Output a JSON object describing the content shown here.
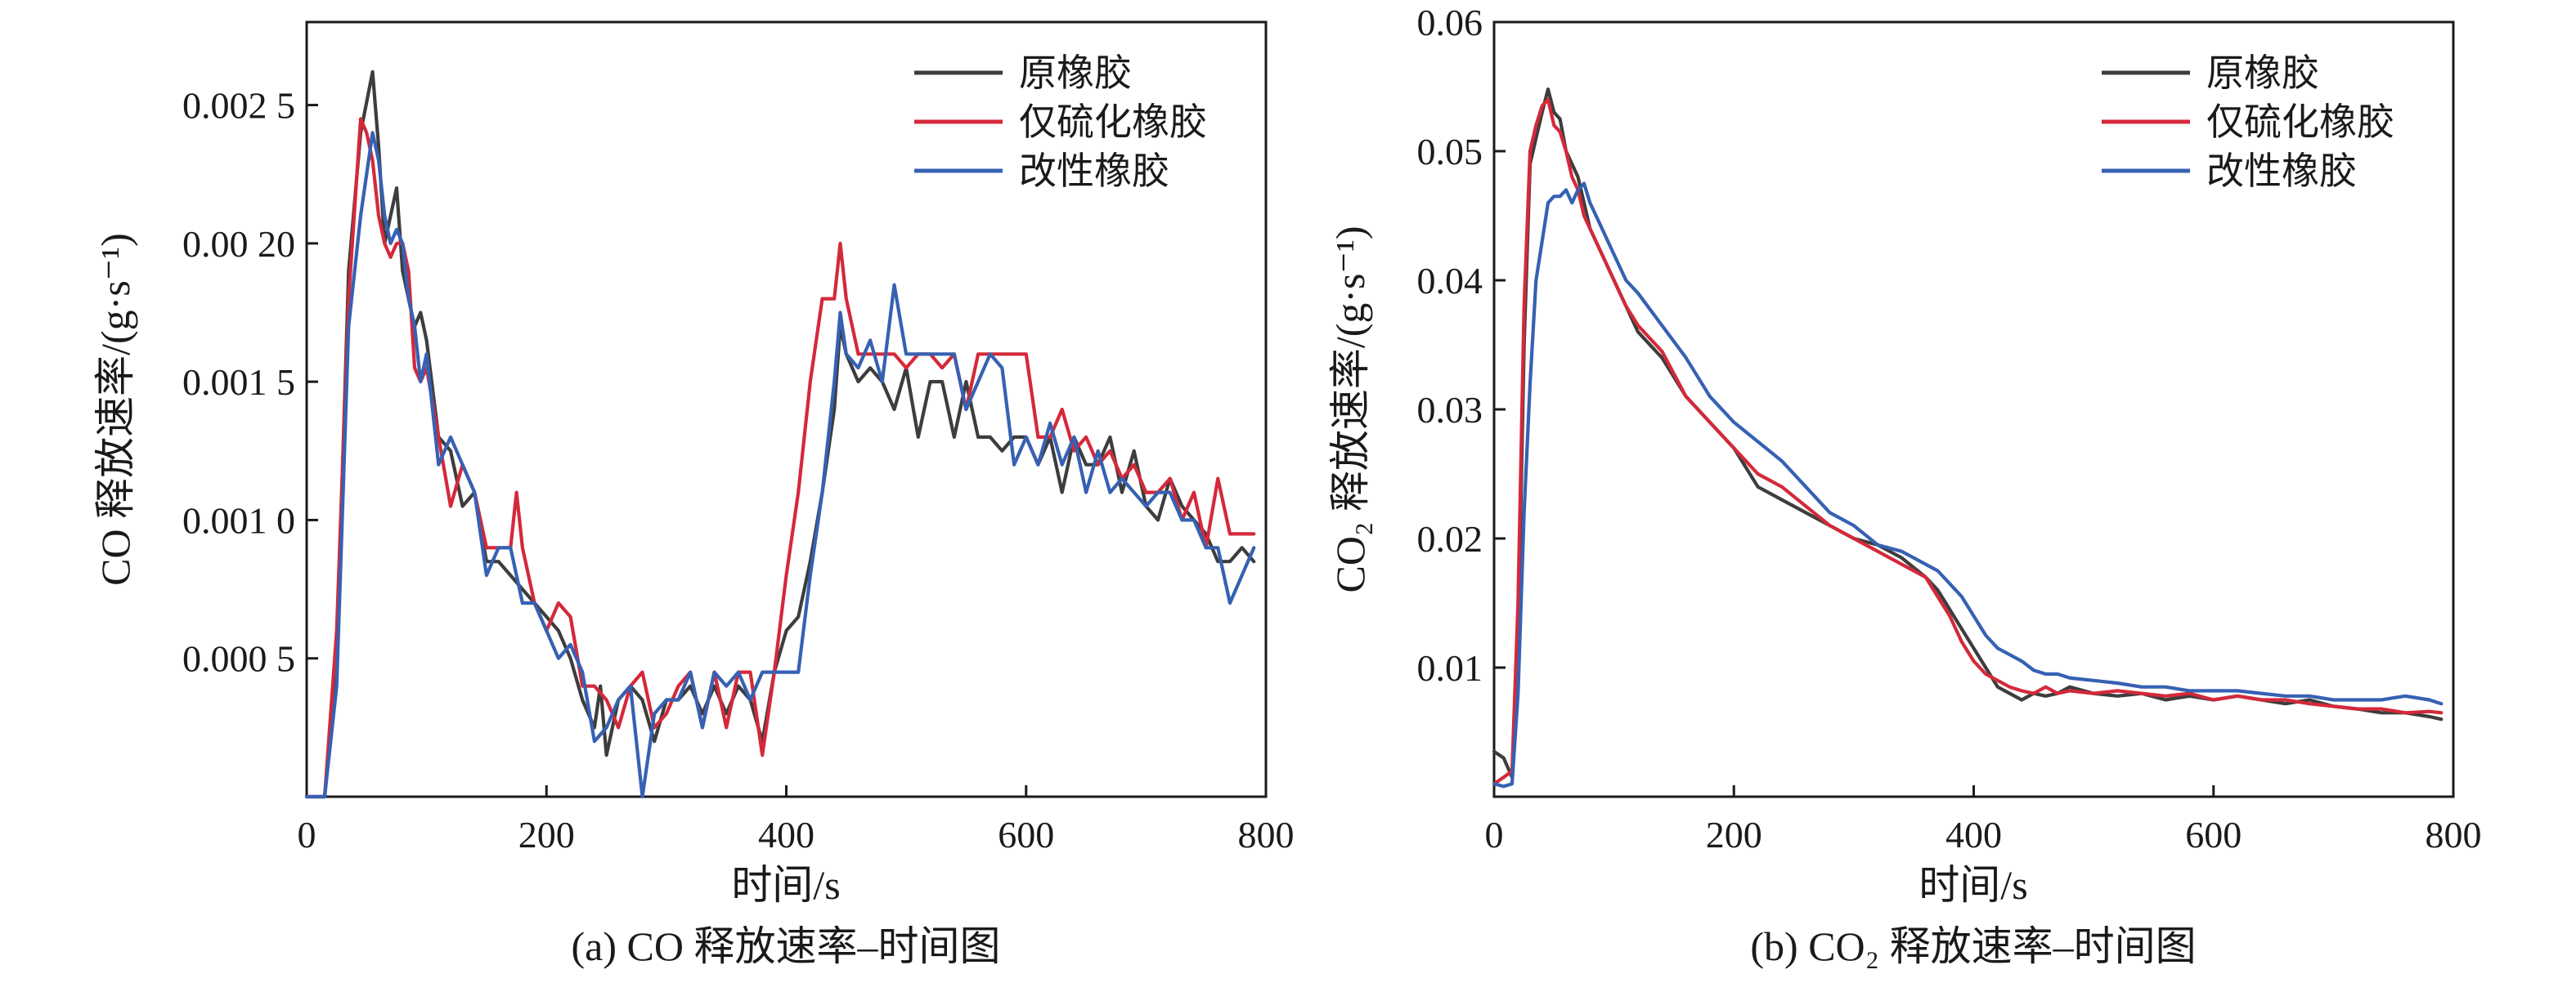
{
  "chart_data": [
    {
      "type": "line",
      "caption": "(a) CO 释放速率–时间图",
      "xlabel": "时间/s",
      "ylabel": "CO 释放速率/(g·s⁻¹)",
      "xlim": [
        0,
        800
      ],
      "ylim": [
        0.0,
        0.0028
      ],
      "xticks": [
        0,
        200,
        400,
        600,
        800
      ],
      "xtick_labels": [
        "0",
        "200",
        "400",
        "600",
        "800"
      ],
      "yticks": [
        0.0005,
        0.001,
        0.0015,
        0.002,
        0.0025
      ],
      "ytick_labels": [
        "0.000 5",
        "0.001 0",
        "0.001 5",
        "0.00 20",
        "0.002 5"
      ],
      "legend_position": "top-right",
      "grid": false,
      "series": [
        {
          "name": "原橡胶",
          "color": "#3d3d3d",
          "x": [
            0,
            15,
            25,
            35,
            45,
            55,
            60,
            65,
            70,
            75,
            80,
            85,
            90,
            95,
            100,
            110,
            120,
            130,
            140,
            150,
            160,
            170,
            180,
            190,
            200,
            210,
            220,
            230,
            240,
            245,
            250,
            260,
            270,
            280,
            290,
            300,
            310,
            320,
            330,
            340,
            350,
            360,
            370,
            380,
            390,
            400,
            410,
            420,
            430,
            440,
            445,
            450,
            460,
            470,
            480,
            490,
            500,
            510,
            520,
            530,
            540,
            550,
            560,
            570,
            580,
            590,
            600,
            610,
            620,
            630,
            640,
            650,
            660,
            670,
            680,
            690,
            700,
            710,
            720,
            730,
            740,
            750,
            760,
            770,
            780,
            790
          ],
          "y": [
            0.0,
            0.0,
            0.0005,
            0.0019,
            0.0024,
            0.00262,
            0.00235,
            0.002,
            0.0021,
            0.0022,
            0.0019,
            0.0018,
            0.0017,
            0.00175,
            0.00165,
            0.0013,
            0.00125,
            0.00105,
            0.0011,
            0.00085,
            0.00085,
            0.0008,
            0.00075,
            0.0007,
            0.00065,
            0.0006,
            0.0005,
            0.00035,
            0.00025,
            0.0004,
            0.00015,
            0.00035,
            0.0004,
            0.00035,
            0.0002,
            0.00035,
            0.00035,
            0.0004,
            0.0003,
            0.0004,
            0.0003,
            0.0004,
            0.00035,
            0.0002,
            0.00045,
            0.0006,
            0.00065,
            0.00085,
            0.0011,
            0.0014,
            0.0017,
            0.0016,
            0.0015,
            0.00155,
            0.0015,
            0.0014,
            0.00155,
            0.0013,
            0.0015,
            0.0015,
            0.0013,
            0.0015,
            0.0013,
            0.0013,
            0.00125,
            0.0013,
            0.0013,
            0.0012,
            0.0013,
            0.0011,
            0.0013,
            0.0012,
            0.0012,
            0.0013,
            0.0011,
            0.00125,
            0.00105,
            0.001,
            0.00115,
            0.00105,
            0.001,
            0.00095,
            0.00085,
            0.00085,
            0.0009,
            0.00085
          ]
        },
        {
          "name": "仅硫化橡胶",
          "color": "#d4293a",
          "x": [
            0,
            15,
            25,
            35,
            45,
            50,
            55,
            60,
            65,
            70,
            75,
            80,
            85,
            90,
            95,
            100,
            110,
            120,
            130,
            140,
            150,
            160,
            170,
            175,
            180,
            190,
            200,
            210,
            220,
            230,
            240,
            250,
            260,
            270,
            280,
            290,
            300,
            310,
            320,
            330,
            340,
            350,
            360,
            370,
            380,
            390,
            400,
            410,
            420,
            430,
            440,
            445,
            450,
            460,
            470,
            480,
            490,
            500,
            510,
            520,
            530,
            540,
            550,
            560,
            570,
            580,
            590,
            600,
            610,
            620,
            630,
            640,
            650,
            660,
            670,
            680,
            690,
            700,
            710,
            720,
            730,
            740,
            750,
            760,
            770,
            780,
            790
          ],
          "y": [
            0.0,
            0.0,
            0.0006,
            0.0018,
            0.00245,
            0.0024,
            0.0023,
            0.0021,
            0.002,
            0.00195,
            0.002,
            0.002,
            0.0019,
            0.00155,
            0.0015,
            0.00155,
            0.0013,
            0.00105,
            0.0012,
            0.0011,
            0.0009,
            0.0009,
            0.0009,
            0.0011,
            0.0009,
            0.0007,
            0.0006,
            0.0007,
            0.00065,
            0.0004,
            0.0004,
            0.00035,
            0.00025,
            0.0004,
            0.00045,
            0.00025,
            0.0003,
            0.0004,
            0.00045,
            0.00025,
            0.00045,
            0.00025,
            0.00045,
            0.00045,
            0.00015,
            0.00045,
            0.0008,
            0.0011,
            0.0015,
            0.0018,
            0.0018,
            0.002,
            0.0018,
            0.0016,
            0.0016,
            0.0016,
            0.0016,
            0.00155,
            0.0016,
            0.0016,
            0.00155,
            0.0016,
            0.0014,
            0.0016,
            0.0016,
            0.0016,
            0.0016,
            0.0016,
            0.0013,
            0.0013,
            0.0014,
            0.00125,
            0.0013,
            0.0012,
            0.00125,
            0.00115,
            0.0012,
            0.0011,
            0.0011,
            0.00115,
            0.001,
            0.0011,
            0.0009,
            0.00115,
            0.00095,
            0.00095,
            0.00095
          ]
        },
        {
          "name": "改性橡胶",
          "color": "#3661b3",
          "x": [
            0,
            15,
            25,
            35,
            45,
            55,
            60,
            65,
            70,
            75,
            80,
            85,
            90,
            95,
            100,
            110,
            120,
            130,
            140,
            150,
            160,
            170,
            180,
            190,
            200,
            210,
            220,
            230,
            240,
            250,
            260,
            270,
            280,
            290,
            300,
            310,
            320,
            330,
            340,
            350,
            360,
            370,
            380,
            390,
            400,
            410,
            420,
            430,
            440,
            445,
            450,
            460,
            470,
            480,
            490,
            500,
            510,
            520,
            530,
            540,
            550,
            560,
            570,
            580,
            590,
            600,
            610,
            620,
            630,
            640,
            650,
            660,
            670,
            680,
            690,
            700,
            710,
            720,
            730,
            740,
            750,
            760,
            770,
            780,
            790
          ],
          "y": [
            0.0,
            0.0,
            0.0004,
            0.0017,
            0.0021,
            0.0024,
            0.0023,
            0.0021,
            0.002,
            0.00205,
            0.002,
            0.0018,
            0.0017,
            0.0015,
            0.0016,
            0.0012,
            0.0013,
            0.0012,
            0.0011,
            0.0008,
            0.0009,
            0.0009,
            0.0007,
            0.0007,
            0.0006,
            0.0005,
            0.00055,
            0.00045,
            0.0002,
            0.00025,
            0.00035,
            0.0004,
            0.0,
            0.0003,
            0.00035,
            0.00035,
            0.00045,
            0.00025,
            0.00045,
            0.0004,
            0.00045,
            0.00035,
            0.00045,
            0.00045,
            0.00045,
            0.00045,
            0.0008,
            0.0011,
            0.0015,
            0.00175,
            0.0016,
            0.00155,
            0.00165,
            0.0015,
            0.00185,
            0.0016,
            0.0016,
            0.0016,
            0.0016,
            0.0016,
            0.0014,
            0.0015,
            0.0016,
            0.00155,
            0.0012,
            0.0013,
            0.0012,
            0.00135,
            0.0012,
            0.0013,
            0.0011,
            0.00125,
            0.0011,
            0.00115,
            0.0011,
            0.00105,
            0.0011,
            0.0011,
            0.001,
            0.001,
            0.0009,
            0.0009,
            0.0007,
            0.0008,
            0.0009
          ]
        }
      ]
    },
    {
      "type": "line",
      "caption": "(b) CO₂ 释放速率–时间图",
      "xlabel": "时间/s",
      "ylabel": "CO₂ 释放速率/(g·s⁻¹)",
      "xlim": [
        0,
        800
      ],
      "ylim": [
        0.0,
        0.06
      ],
      "xticks": [
        0,
        200,
        400,
        600,
        800
      ],
      "xtick_labels": [
        "0",
        "200",
        "400",
        "600",
        "800"
      ],
      "yticks": [
        0.01,
        0.02,
        0.03,
        0.04,
        0.05,
        0.06
      ],
      "ytick_labels": [
        "0.01",
        "0.02",
        "0.03",
        "0.04",
        "0.05",
        "0.06"
      ],
      "legend_position": "top-right",
      "grid": false,
      "series": [
        {
          "name": "原橡胶",
          "color": "#3d3d3d",
          "x": [
            0,
            8,
            15,
            20,
            25,
            30,
            35,
            40,
            45,
            50,
            55,
            60,
            65,
            70,
            75,
            80,
            90,
            100,
            110,
            120,
            140,
            160,
            180,
            200,
            220,
            240,
            260,
            280,
            300,
            320,
            340,
            360,
            370,
            380,
            390,
            400,
            410,
            420,
            430,
            440,
            450,
            460,
            470,
            480,
            500,
            520,
            540,
            560,
            580,
            600,
            620,
            640,
            660,
            680,
            700,
            720,
            740,
            760,
            780,
            790
          ],
          "y": [
            0.0035,
            0.003,
            0.0015,
            0.012,
            0.035,
            0.049,
            0.051,
            0.053,
            0.0548,
            0.053,
            0.0525,
            0.05,
            0.049,
            0.048,
            0.046,
            0.044,
            0.042,
            0.04,
            0.038,
            0.036,
            0.034,
            0.031,
            0.029,
            0.027,
            0.024,
            0.023,
            0.022,
            0.021,
            0.02,
            0.0195,
            0.0185,
            0.017,
            0.016,
            0.0145,
            0.013,
            0.0115,
            0.01,
            0.0085,
            0.008,
            0.0075,
            0.008,
            0.0078,
            0.008,
            0.0085,
            0.008,
            0.0078,
            0.008,
            0.0075,
            0.0078,
            0.0075,
            0.0078,
            0.0075,
            0.0072,
            0.0075,
            0.007,
            0.0068,
            0.0065,
            0.0065,
            0.0062,
            0.006
          ]
        },
        {
          "name": "仅硫化橡胶",
          "color": "#d4293a",
          "x": [
            0,
            8,
            15,
            20,
            25,
            30,
            35,
            40,
            45,
            50,
            55,
            60,
            65,
            70,
            75,
            80,
            90,
            100,
            110,
            120,
            140,
            160,
            180,
            200,
            220,
            240,
            260,
            280,
            300,
            320,
            340,
            360,
            370,
            380,
            390,
            400,
            410,
            420,
            430,
            440,
            450,
            460,
            470,
            480,
            500,
            520,
            540,
            560,
            580,
            600,
            620,
            640,
            660,
            680,
            700,
            720,
            740,
            760,
            780,
            790
          ],
          "y": [
            0.001,
            0.0015,
            0.002,
            0.015,
            0.038,
            0.05,
            0.052,
            0.0535,
            0.054,
            0.052,
            0.0515,
            0.05,
            0.048,
            0.047,
            0.045,
            0.044,
            0.042,
            0.04,
            0.038,
            0.0365,
            0.0345,
            0.031,
            0.029,
            0.027,
            0.025,
            0.024,
            0.0225,
            0.021,
            0.02,
            0.019,
            0.018,
            0.017,
            0.0155,
            0.014,
            0.012,
            0.0105,
            0.0095,
            0.009,
            0.0085,
            0.0082,
            0.008,
            0.0085,
            0.008,
            0.0082,
            0.008,
            0.0082,
            0.008,
            0.0078,
            0.008,
            0.0075,
            0.0078,
            0.0075,
            0.0075,
            0.0072,
            0.007,
            0.0068,
            0.0068,
            0.0065,
            0.0066,
            0.0065
          ]
        },
        {
          "name": "改性橡胶",
          "color": "#3661b3",
          "x": [
            0,
            8,
            15,
            20,
            25,
            30,
            35,
            40,
            45,
            50,
            55,
            60,
            65,
            70,
            75,
            80,
            90,
            100,
            110,
            120,
            140,
            160,
            180,
            200,
            220,
            240,
            260,
            280,
            300,
            320,
            340,
            360,
            370,
            380,
            390,
            400,
            410,
            420,
            430,
            440,
            450,
            460,
            470,
            480,
            500,
            520,
            540,
            560,
            580,
            600,
            620,
            640,
            660,
            680,
            700,
            720,
            740,
            760,
            780,
            790
          ],
          "y": [
            0.001,
            0.0008,
            0.001,
            0.008,
            0.022,
            0.032,
            0.04,
            0.043,
            0.046,
            0.0465,
            0.0465,
            0.047,
            0.046,
            0.047,
            0.0475,
            0.046,
            0.044,
            0.042,
            0.04,
            0.039,
            0.0365,
            0.034,
            0.031,
            0.029,
            0.0275,
            0.026,
            0.024,
            0.022,
            0.021,
            0.0195,
            0.019,
            0.018,
            0.0175,
            0.0165,
            0.0155,
            0.014,
            0.0125,
            0.0115,
            0.011,
            0.0105,
            0.0098,
            0.0095,
            0.0095,
            0.0092,
            0.009,
            0.0088,
            0.0085,
            0.0085,
            0.0082,
            0.0082,
            0.0082,
            0.008,
            0.0078,
            0.0078,
            0.0075,
            0.0075,
            0.0075,
            0.0078,
            0.0075,
            0.0072
          ]
        }
      ]
    }
  ]
}
